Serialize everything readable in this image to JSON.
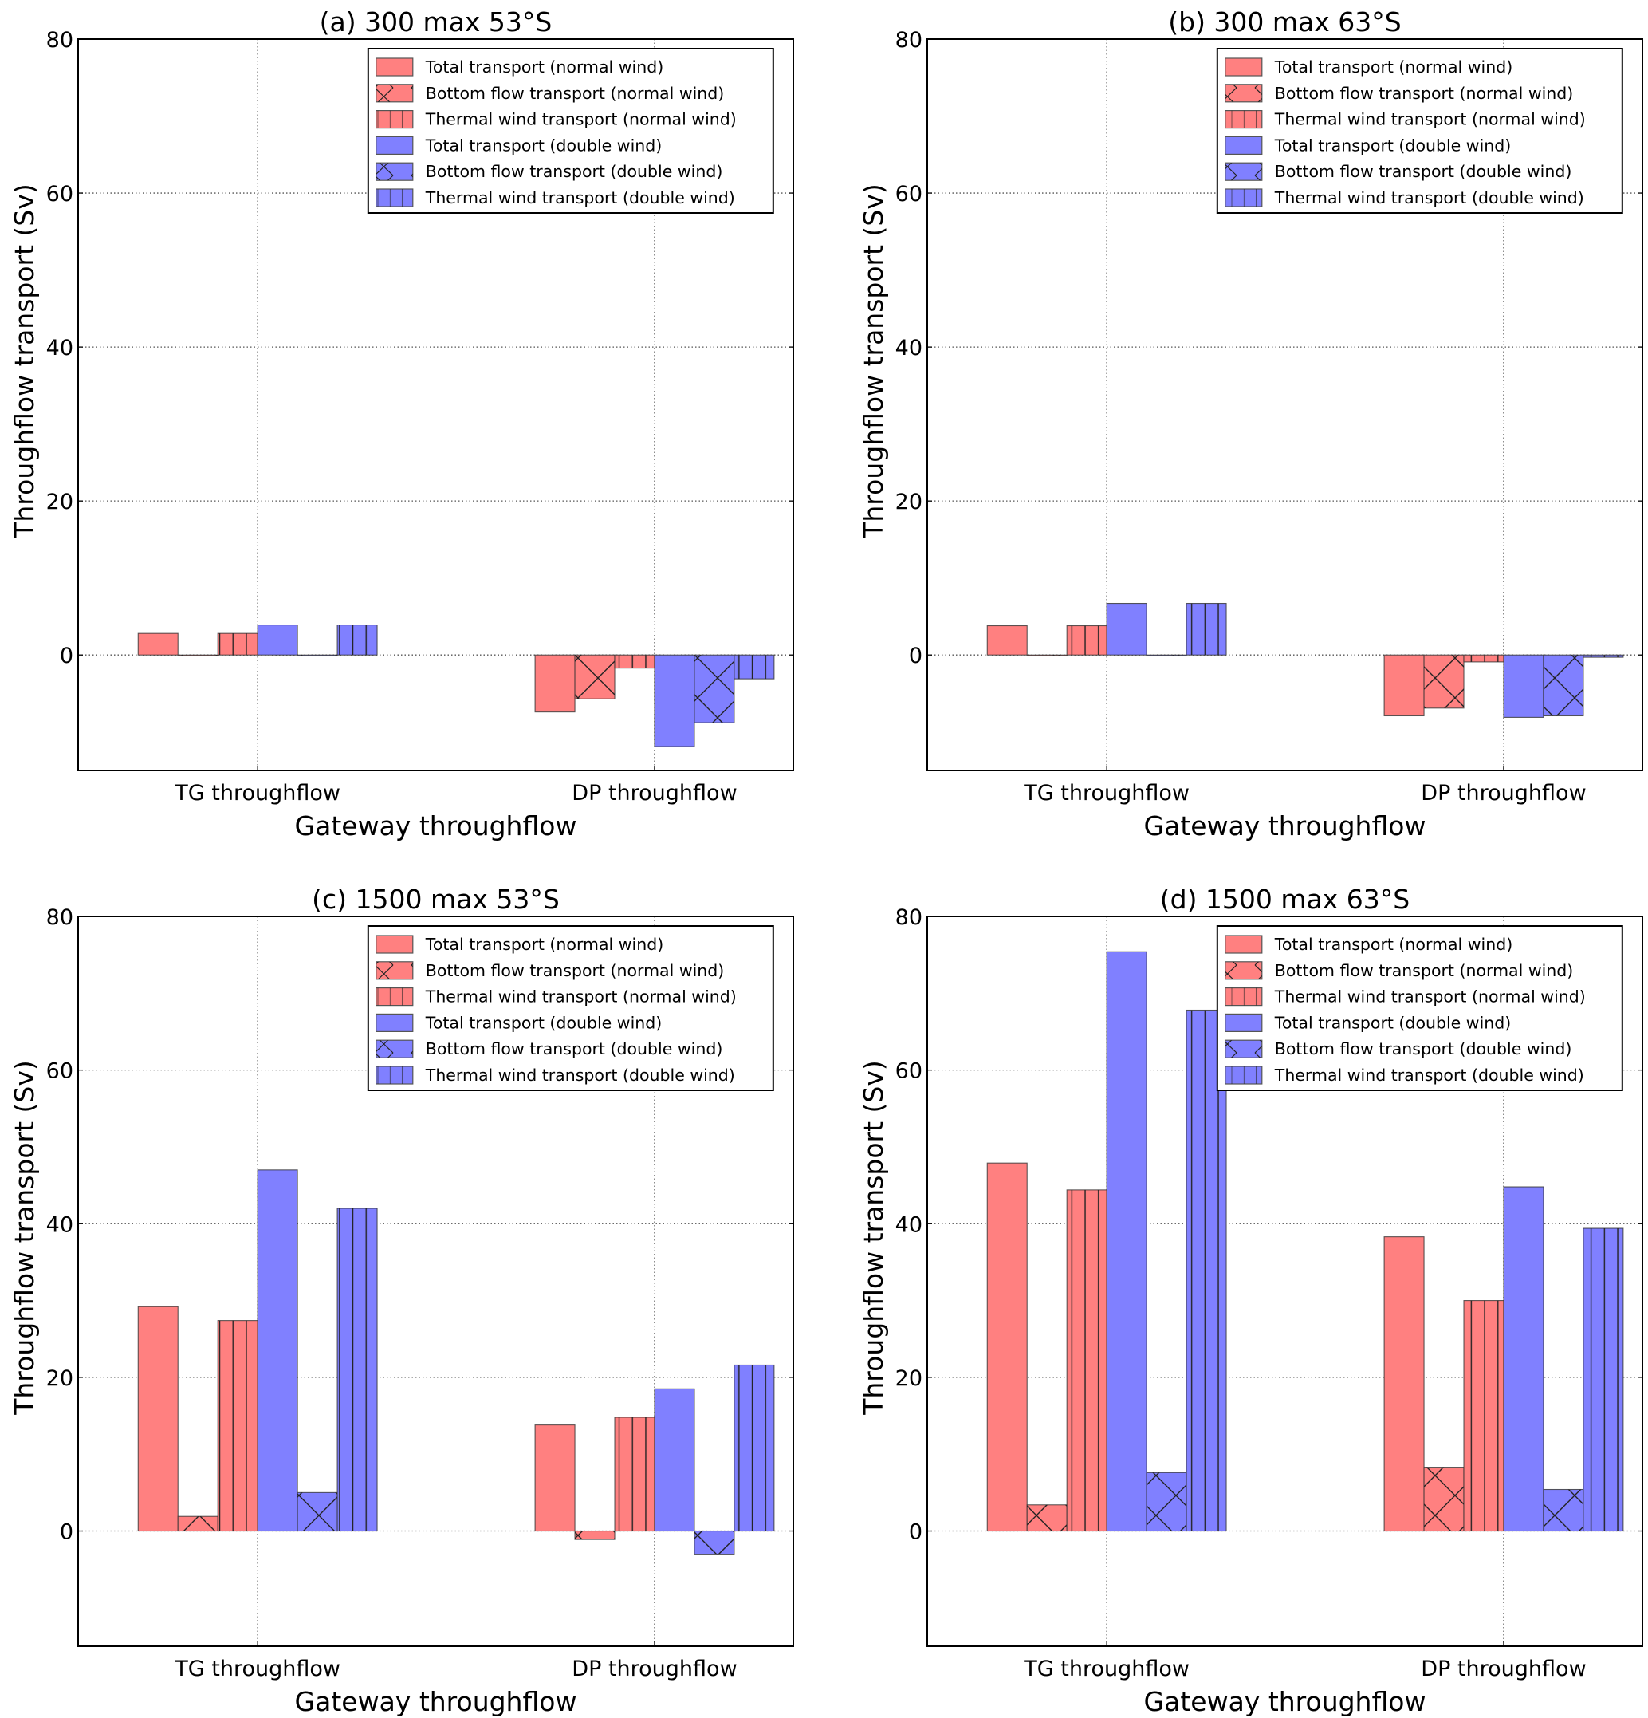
{
  "chart_data": [
    {
      "type": "bar",
      "panel": "a",
      "title": "(a) 300 max 53°S",
      "xlabel": "Gateway throughflow",
      "ylabel": "Throughflow transport (Sv)",
      "categories": [
        "TG throughflow",
        "DP throughflow"
      ],
      "ylim": [
        -15,
        80
      ],
      "yticks": [
        0,
        20,
        40,
        60,
        80
      ],
      "grid": true,
      "legend_position": "top-right",
      "series": [
        {
          "name": "Total transport (normal wind)",
          "color": "#ff8080",
          "hatch": "none",
          "values": [
            2.8,
            -7.4
          ]
        },
        {
          "name": "Bottom flow transport (normal wind)",
          "color": "#ff8080",
          "hatch": "x",
          "values": [
            0.0,
            -5.7
          ]
        },
        {
          "name": "Thermal wind transport (normal wind)",
          "color": "#ff8080",
          "hatch": "|",
          "values": [
            2.8,
            -1.7
          ]
        },
        {
          "name": "Total transport (double wind)",
          "color": "#8080ff",
          "hatch": "none",
          "values": [
            3.9,
            -11.9
          ]
        },
        {
          "name": "Bottom flow transport (double wind)",
          "color": "#8080ff",
          "hatch": "x",
          "values": [
            0.0,
            -8.8
          ]
        },
        {
          "name": "Thermal wind transport (double wind)",
          "color": "#8080ff",
          "hatch": "|",
          "values": [
            3.9,
            -3.1
          ]
        }
      ]
    },
    {
      "type": "bar",
      "panel": "b",
      "title": "(b) 300 max 63°S",
      "xlabel": "Gateway throughflow",
      "ylabel": "Throughflow transport (Sv)",
      "categories": [
        "TG throughflow",
        "DP throughflow"
      ],
      "ylim": [
        -15,
        80
      ],
      "yticks": [
        0,
        20,
        40,
        60,
        80
      ],
      "grid": true,
      "legend_position": "top-right",
      "series": [
        {
          "name": "Total transport (normal wind)",
          "color": "#ff8080",
          "hatch": "none",
          "values": [
            3.8,
            -7.9
          ]
        },
        {
          "name": "Bottom flow transport (normal wind)",
          "color": "#ff8080",
          "hatch": "x",
          "values": [
            0.0,
            -6.9
          ]
        },
        {
          "name": "Thermal wind transport (normal wind)",
          "color": "#ff8080",
          "hatch": "|",
          "values": [
            3.8,
            -0.9
          ]
        },
        {
          "name": "Total transport (double wind)",
          "color": "#8080ff",
          "hatch": "none",
          "values": [
            6.7,
            -8.1
          ]
        },
        {
          "name": "Bottom flow transport (double wind)",
          "color": "#8080ff",
          "hatch": "x",
          "values": [
            0.0,
            -7.9
          ]
        },
        {
          "name": "Thermal wind transport (double wind)",
          "color": "#8080ff",
          "hatch": "|",
          "values": [
            6.7,
            -0.3
          ]
        }
      ]
    },
    {
      "type": "bar",
      "panel": "c",
      "title": "(c) 1500 max 53°S",
      "xlabel": "Gateway throughflow",
      "ylabel": "Throughflow transport (Sv)",
      "categories": [
        "TG throughflow",
        "DP throughflow"
      ],
      "ylim": [
        -15,
        80
      ],
      "yticks": [
        0,
        20,
        40,
        60,
        80
      ],
      "grid": true,
      "legend_position": "top-right",
      "series": [
        {
          "name": "Total transport (normal wind)",
          "color": "#ff8080",
          "hatch": "none",
          "values": [
            29.2,
            13.8
          ]
        },
        {
          "name": "Bottom flow transport (normal wind)",
          "color": "#ff8080",
          "hatch": "x",
          "values": [
            1.9,
            -1.1
          ]
        },
        {
          "name": "Thermal wind transport (normal wind)",
          "color": "#ff8080",
          "hatch": "|",
          "values": [
            27.4,
            14.8
          ]
        },
        {
          "name": "Total transport (double wind)",
          "color": "#8080ff",
          "hatch": "none",
          "values": [
            47.0,
            18.5
          ]
        },
        {
          "name": "Bottom flow transport (double wind)",
          "color": "#8080ff",
          "hatch": "x",
          "values": [
            5.0,
            -3.1
          ]
        },
        {
          "name": "Thermal wind transport (double wind)",
          "color": "#8080ff",
          "hatch": "|",
          "values": [
            42.0,
            21.6
          ]
        }
      ]
    },
    {
      "type": "bar",
      "panel": "d",
      "title": "(d) 1500 max 63°S",
      "xlabel": "Gateway throughflow",
      "ylabel": "Throughflow transport (Sv)",
      "categories": [
        "TG throughflow",
        "DP throughflow"
      ],
      "ylim": [
        -15,
        80
      ],
      "yticks": [
        0,
        20,
        40,
        60,
        80
      ],
      "grid": true,
      "legend_position": "top-right",
      "series": [
        {
          "name": "Total transport (normal wind)",
          "color": "#ff8080",
          "hatch": "none",
          "values": [
            47.9,
            38.3
          ]
        },
        {
          "name": "Bottom flow transport (normal wind)",
          "color": "#ff8080",
          "hatch": "x",
          "values": [
            3.4,
            8.3
          ]
        },
        {
          "name": "Thermal wind transport (normal wind)",
          "color": "#ff8080",
          "hatch": "|",
          "values": [
            44.4,
            30.0
          ]
        },
        {
          "name": "Total transport (double wind)",
          "color": "#8080ff",
          "hatch": "none",
          "values": [
            75.4,
            44.8
          ]
        },
        {
          "name": "Bottom flow transport (double wind)",
          "color": "#8080ff",
          "hatch": "x",
          "values": [
            7.6,
            5.4
          ]
        },
        {
          "name": "Thermal wind transport (double wind)",
          "color": "#8080ff",
          "hatch": "|",
          "values": [
            67.8,
            39.4
          ]
        }
      ]
    }
  ]
}
